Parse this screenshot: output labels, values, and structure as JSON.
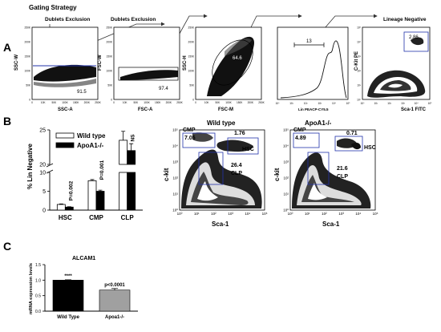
{
  "figure": {
    "panel_labels": [
      "A",
      "B",
      "C"
    ],
    "gating": {
      "title": "Gating Strategy",
      "steps": [
        {
          "title": "Dublets Exclusion",
          "xlabel": "SSC-A",
          "ylabel": "SSC-W",
          "gate_value": "91.5"
        },
        {
          "title": "Dublets Exclusion",
          "xlabel": "FSC-A",
          "ylabel": "FSC-W",
          "gate_value": "97.4"
        },
        {
          "title": "",
          "xlabel": "FSC-M",
          "ylabel": "SSC-H",
          "gate_value": "64.6"
        },
        {
          "title": "",
          "xlabel": "Lin PEACP-CY5.5",
          "ylabel": "",
          "gate_value": "13"
        },
        {
          "title": "Lineage Negative",
          "xlabel": "Sca-1 FITC",
          "ylabel": "C-Kit PE",
          "gate_value": "2.86"
        }
      ]
    },
    "lin_flow": [
      {
        "title": "Wild type",
        "xlabel": "Sca-1",
        "ylabel": "c-kit",
        "gates": [
          {
            "name": "CMP",
            "value": "7.05"
          },
          {
            "name": "HSC",
            "value": "1.76"
          },
          {
            "name": "CLP",
            "value": "26.4"
          }
        ]
      },
      {
        "title": "ApoA1-/-",
        "xlabel": "Sca-1",
        "ylabel": "c-kit",
        "gates": [
          {
            "name": "CMP",
            "value": "4.89"
          },
          {
            "name": "HSC",
            "value": "0.71"
          },
          {
            "name": "CLP",
            "value": "21.6"
          }
        ]
      }
    ],
    "flow_ticks": {
      "x": [
        "0",
        "10K",
        "50K",
        "100K",
        "150K",
        "200K",
        "250K"
      ],
      "y": [
        "0",
        "50K",
        "100K",
        "150K",
        "200K",
        "250K"
      ],
      "log": [
        "10⁰",
        "10¹",
        "10²",
        "10³",
        "10⁴",
        "10⁵"
      ]
    }
  },
  "chart_data": [
    {
      "type": "bar",
      "ylabel": "% Lin Negative",
      "categories": [
        "HSC",
        "CMP",
        "CLP"
      ],
      "series": [
        {
          "name": "Wild type",
          "values": [
            1.5,
            7.8,
            23.5
          ],
          "errors": [
            0.15,
            0.3,
            1.3
          ],
          "color": "#ffffff"
        },
        {
          "name": "ApoA1-/-",
          "values": [
            0.8,
            5.0,
            22.0
          ],
          "errors": [
            0.1,
            0.3,
            1.0
          ],
          "color": "#000000"
        }
      ],
      "yticks": [
        0,
        5,
        10,
        20,
        25
      ],
      "axis_break": [
        10,
        20
      ],
      "annotations": [
        "P=0.002",
        "P=0.001",
        "NS"
      ],
      "legend_position": "top-left"
    },
    {
      "type": "bar",
      "title": "ALCAM1",
      "ylabel": "mRNA expression levels",
      "categories": [
        "Wild Type",
        "Apoa1-/-"
      ],
      "values": [
        1.0,
        0.68
      ],
      "errors": [
        0.01,
        0.05
      ],
      "colors": [
        "#000000",
        "#a0a0a0"
      ],
      "ylim": [
        0,
        1.5
      ],
      "yticks": [
        0.0,
        0.5,
        1.0,
        1.5
      ],
      "annotations": [
        "****",
        "p<0.0001"
      ]
    }
  ]
}
